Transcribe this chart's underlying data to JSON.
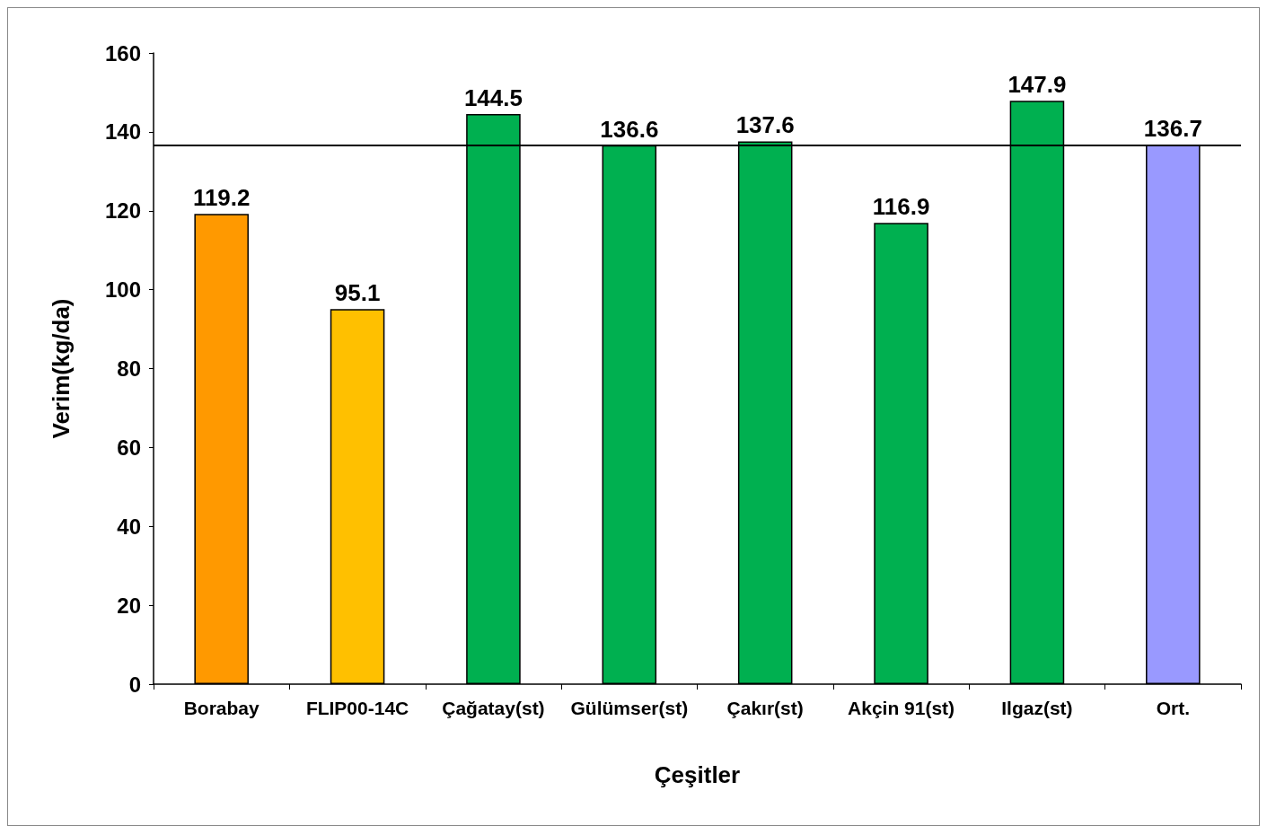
{
  "chart_data": {
    "type": "bar",
    "xlabel": "Çeşitler",
    "ylabel": "Verim(kg/da)",
    "categories": [
      "Borabay",
      "FLIP00-14C",
      "Çağatay(st)",
      "Gülümser(st)",
      "Çakır(st)",
      "Akçin 91(st)",
      "Ilgaz(st)",
      "Ort."
    ],
    "values": [
      119.2,
      95.1,
      144.5,
      136.6,
      137.6,
      116.9,
      147.9,
      136.7
    ],
    "colors": [
      "#ff9900",
      "#ffc000",
      "#00b050",
      "#00b050",
      "#00b050",
      "#00b050",
      "#00b050",
      "#9999ff"
    ],
    "ylim": [
      0,
      160
    ],
    "yticks": [
      0,
      20,
      40,
      60,
      80,
      100,
      120,
      140,
      160
    ],
    "grid": false,
    "data_labels": true,
    "ref_lines": [
      {
        "axis": "y",
        "value": 136.7,
        "color": "#000000"
      }
    ]
  }
}
